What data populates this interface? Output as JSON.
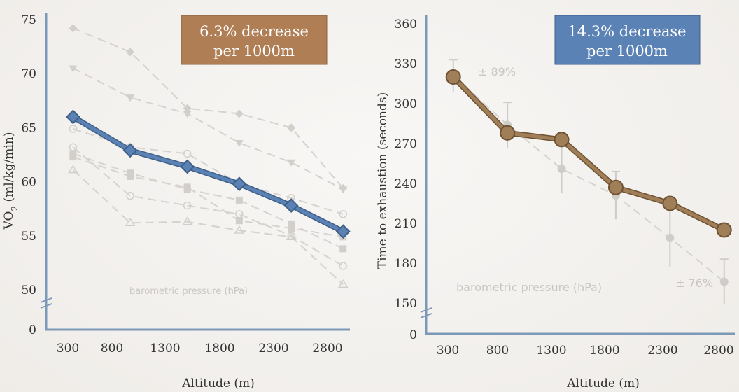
{
  "chart_data": [
    {
      "type": "line",
      "xlabel": "Altitude (m)",
      "ylabel_main": "VO",
      "ylabel_sub": "2",
      "ylabel_rest": " (ml/kg/min)",
      "x_ticks": [
        "300",
        "800",
        "1300",
        "1800",
        "2300",
        "2800"
      ],
      "y_ticks": [
        "0",
        "50",
        "55",
        "60",
        "65",
        "70",
        "75"
      ],
      "y_break": true,
      "annotation": {
        "line1": "6.3% decrease",
        "line2": "per 1000m",
        "color": "#b07e55"
      },
      "faded_label": "barometric pressure (hPa)",
      "series": [
        {
          "color": "#5b82b5",
          "x": [
            350,
            900,
            1450,
            1950,
            2450,
            2950
          ],
          "y": [
            66.0,
            62.9,
            61.4,
            59.8,
            57.8,
            55.4
          ]
        }
      ],
      "background_series": [
        {
          "marker": "diamond",
          "x": [
            350,
            900,
            1450,
            1950,
            2450,
            2950
          ],
          "y": [
            74.2,
            72.0,
            66.8,
            66.3,
            65.0,
            59.4
          ]
        },
        {
          "marker": "triangle-down",
          "x": [
            350,
            900,
            1450,
            1950,
            2450,
            2950
          ],
          "y": [
            70.5,
            67.8,
            66.3,
            63.6,
            61.8,
            59.3
          ]
        },
        {
          "marker": "circle",
          "x": [
            350,
            900,
            1450,
            1950,
            2450,
            2950
          ],
          "y": [
            64.9,
            63.2,
            62.6,
            59.8,
            58.5,
            57.0
          ]
        },
        {
          "marker": "square",
          "x": [
            350,
            900,
            1450,
            1950,
            2450,
            2950
          ],
          "y": [
            62.6,
            60.8,
            59.3,
            58.3,
            56.1,
            53.8
          ]
        },
        {
          "marker": "circle",
          "x": [
            350,
            900,
            1450,
            1950,
            2450,
            2950
          ],
          "y": [
            63.2,
            58.7,
            57.8,
            57.0,
            55.0,
            52.2
          ]
        },
        {
          "marker": "square",
          "x": [
            350,
            900,
            1450,
            1950,
            2450,
            2950
          ],
          "y": [
            62.3,
            60.5,
            59.5,
            56.4,
            55.7,
            54.9
          ]
        },
        {
          "marker": "triangle",
          "x": [
            350,
            900,
            1450,
            1950,
            2450,
            2950
          ],
          "y": [
            61.1,
            56.2,
            56.3,
            55.5,
            54.9,
            50.5
          ]
        }
      ]
    },
    {
      "type": "line",
      "xlabel": "Altitude (m)",
      "ylabel": "Time to exhaustion (seconds)",
      "x_ticks": [
        "300",
        "800",
        "1300",
        "1800",
        "2300",
        "2800"
      ],
      "y_ticks": [
        "0",
        "150",
        "180",
        "210",
        "240",
        "270",
        "300",
        "330",
        "360"
      ],
      "y_break": true,
      "annotation": {
        "line1": "14.3% decrease",
        "line2": "per 1000m",
        "color": "#5b82b5"
      },
      "faded_label": "barometric pressure (hPa)",
      "faded_pct_top": "± 89%",
      "faded_pct_bottom": "± 76%",
      "series": [
        {
          "color": "#a07e58",
          "x": [
            350,
            850,
            1350,
            1850,
            2350,
            2850
          ],
          "y": [
            320,
            278,
            273,
            237,
            225,
            205
          ]
        }
      ],
      "background_series": [
        {
          "x": [
            350,
            850,
            1350,
            1850,
            2350,
            2850
          ],
          "y": [
            321,
            284,
            251,
            231,
            199,
            166
          ],
          "err": [
            12,
            17,
            18,
            18,
            22,
            17
          ]
        }
      ]
    }
  ]
}
